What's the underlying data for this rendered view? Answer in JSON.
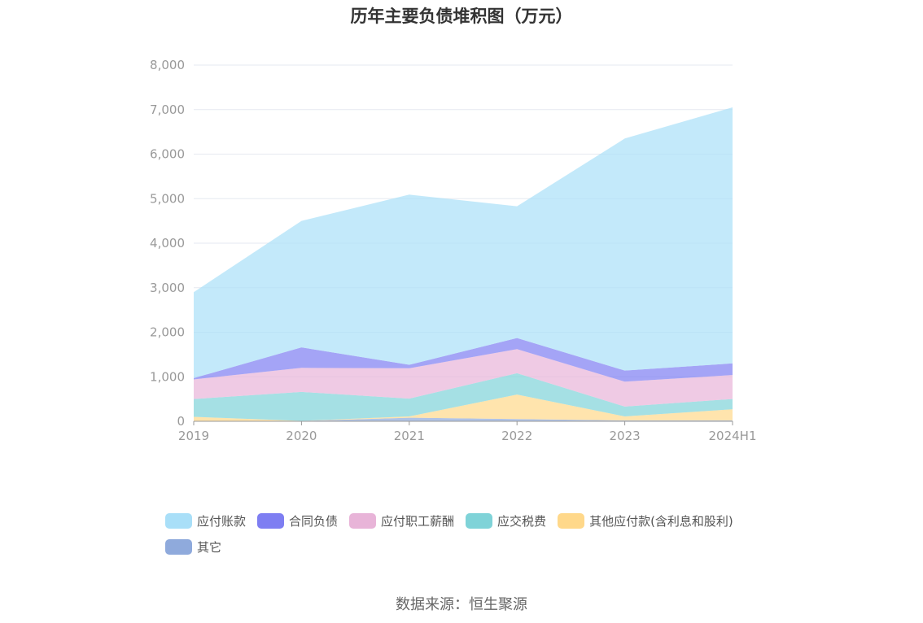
{
  "title": "历年主要负债堆积图（万元）",
  "source": "数据来源：恒生聚源",
  "chart_data": {
    "type": "area",
    "stacked": true,
    "categories": [
      "2019",
      "2020",
      "2021",
      "2022",
      "2023",
      "2024H1"
    ],
    "ylim": [
      0,
      8000
    ],
    "yticks": [
      0,
      1000,
      2000,
      3000,
      4000,
      5000,
      6000,
      7000,
      8000
    ],
    "ytick_labels": [
      "0",
      "1,000",
      "2,000",
      "3,000",
      "4,000",
      "5,000",
      "6,000",
      "7,000",
      "8,000"
    ],
    "grid": true,
    "legend_position": "bottom",
    "series": [
      {
        "name": "其它",
        "color": "#8FAADC",
        "values": [
          10,
          10,
          80,
          50,
          20,
          20
        ]
      },
      {
        "name": "其他应付款(含利息和股利)",
        "color": "#FFD88A",
        "values": [
          90,
          0,
          30,
          550,
          90,
          250
        ]
      },
      {
        "name": "应交税费",
        "color": "#7FD3D8",
        "values": [
          400,
          650,
          400,
          480,
          220,
          230
        ]
      },
      {
        "name": "应付职工薪酬",
        "color": "#E8B4D8",
        "values": [
          440,
          540,
          680,
          540,
          560,
          540
        ]
      },
      {
        "name": "合同负债",
        "color": "#7E7EF2",
        "values": [
          30,
          460,
          80,
          250,
          250,
          260
        ]
      },
      {
        "name": "应付账款",
        "color": "#A9DFF8",
        "values": [
          1930,
          2840,
          3820,
          2960,
          5210,
          5750
        ]
      }
    ]
  },
  "legend_order": [
    "应付账款",
    "合同负债",
    "应付职工薪酬",
    "应交税费",
    "其他应付款(含利息和股利)",
    "其它"
  ]
}
